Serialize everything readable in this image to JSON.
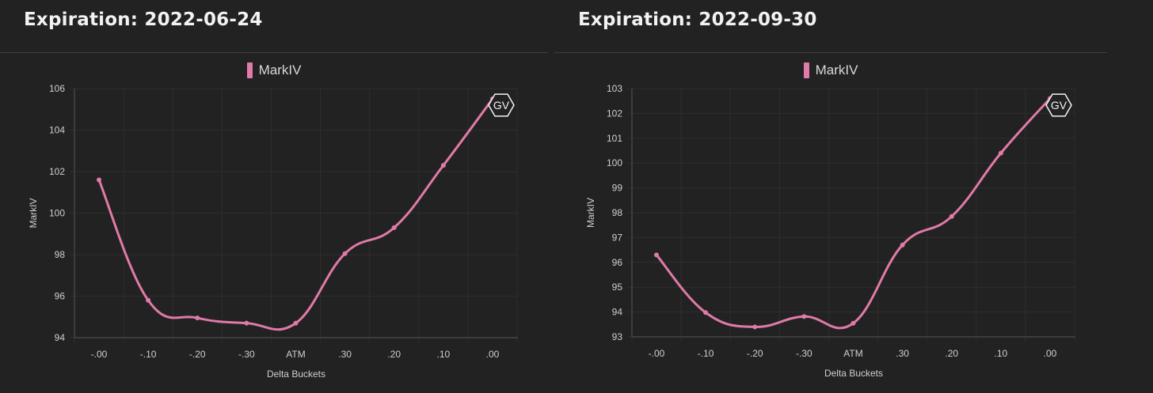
{
  "colors": {
    "background": "#222222",
    "line": "#e07aa8",
    "grid": "#2e2e2e",
    "text": "#cfcfcf"
  },
  "chart_data": [
    {
      "type": "line",
      "title": "Expiration: 2022-06-24",
      "xlabel": "Delta Buckets",
      "ylabel": "MarkIV",
      "categories": [
        "-.00",
        "-.10",
        "-.20",
        "-.30",
        "ATM",
        ".30",
        ".20",
        ".10",
        ".00"
      ],
      "series": [
        {
          "name": "MarkIV",
          "values": [
            101.6,
            95.8,
            94.95,
            94.7,
            94.7,
            98.05,
            99.3,
            102.3,
            105.5
          ]
        }
      ],
      "ylim": [
        94,
        106
      ],
      "yticks": [
        "94",
        "96",
        "98",
        "100",
        "102",
        "104",
        "106"
      ],
      "grid": true,
      "legend": "top-center",
      "watermark": "GV"
    },
    {
      "type": "line",
      "title": "Expiration: 2022-09-30",
      "xlabel": "Delta Buckets",
      "ylabel": "MarkIV",
      "categories": [
        "-.00",
        "-.10",
        "-.20",
        "-.30",
        "ATM",
        ".30",
        ".20",
        ".10",
        ".00"
      ],
      "series": [
        {
          "name": "MarkIV",
          "values": [
            96.3,
            93.98,
            93.4,
            93.82,
            93.55,
            96.7,
            97.85,
            100.4,
            102.6
          ]
        }
      ],
      "ylim": [
        93,
        103
      ],
      "yticks": [
        "93",
        "94",
        "95",
        "96",
        "97",
        "98",
        "99",
        "100",
        "101",
        "102",
        "103"
      ],
      "grid": true,
      "legend": "top-center",
      "watermark": "GV"
    }
  ]
}
